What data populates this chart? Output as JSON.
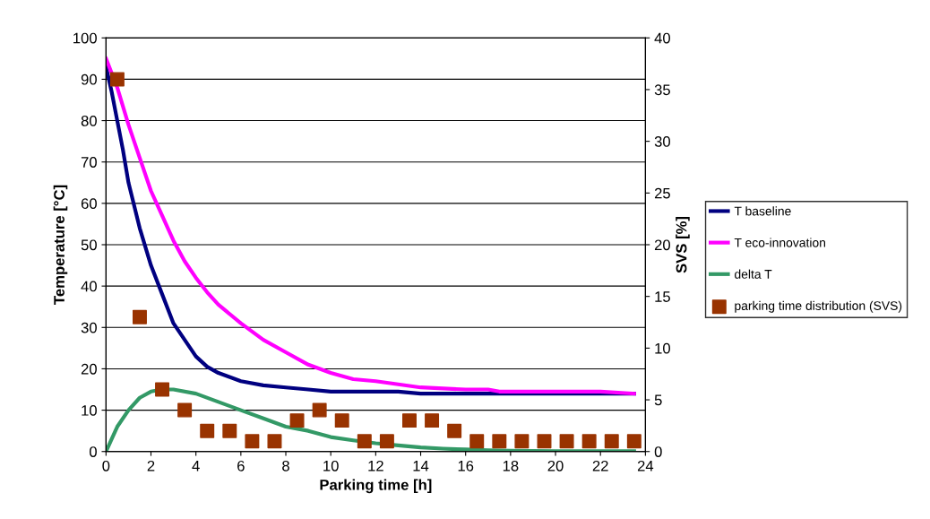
{
  "chart_data": {
    "type": "line",
    "xlabel": "Parking time [h]",
    "ylabel": "Temperature [°C]",
    "y2label": "SVS [%]",
    "xlim": [
      0,
      24
    ],
    "xticks": [
      0,
      2,
      4,
      6,
      8,
      10,
      12,
      14,
      16,
      18,
      20,
      22,
      24
    ],
    "ylim": [
      0,
      100
    ],
    "yticks": [
      0,
      10,
      20,
      30,
      40,
      50,
      60,
      70,
      80,
      90,
      100
    ],
    "y2lim": [
      0,
      40
    ],
    "y2ticks": [
      0,
      5,
      10,
      15,
      20,
      25,
      30,
      35,
      40
    ],
    "grid": "y",
    "legend": "right",
    "series": [
      {
        "name": "T baseline",
        "type": "line",
        "color": "#000080",
        "x": [
          0,
          0.25,
          0.5,
          0.75,
          1,
          1.5,
          2,
          2.5,
          3,
          3.5,
          4,
          4.5,
          5,
          6,
          7,
          8,
          9,
          10,
          12,
          13,
          14,
          16,
          18,
          20,
          22,
          23.5
        ],
        "values": [
          93,
          87,
          80,
          73,
          65,
          54,
          45,
          38,
          31,
          27,
          23,
          20.5,
          19,
          17,
          16,
          15.5,
          15,
          14.5,
          14.5,
          14.5,
          14,
          14,
          14,
          14,
          14,
          14
        ]
      },
      {
        "name": "T eco-innovation",
        "type": "line",
        "color": "#ff00ff",
        "x": [
          0,
          0.5,
          1,
          1.5,
          2,
          2.5,
          3,
          3.5,
          4,
          4.5,
          5,
          6,
          7,
          8,
          9,
          10,
          11,
          12,
          14,
          16,
          17,
          17.5,
          20,
          22,
          23.5
        ],
        "values": [
          95,
          88,
          79,
          71,
          63,
          57,
          51,
          46,
          42,
          38.5,
          35.5,
          31,
          27,
          24,
          21,
          19,
          17.5,
          17,
          15.5,
          15,
          15,
          14.5,
          14.5,
          14.5,
          14
        ]
      },
      {
        "name": "delta T",
        "type": "line",
        "color": "#339966",
        "x": [
          0,
          0.25,
          0.5,
          1,
          1.5,
          2,
          2.5,
          3,
          4,
          5,
          6,
          7,
          8,
          9,
          10,
          11,
          12,
          13,
          14,
          15,
          16,
          17,
          18,
          20,
          22,
          23.5
        ],
        "values": [
          0,
          3,
          6,
          10,
          13,
          14.5,
          15,
          15,
          14,
          12,
          10,
          8,
          6,
          5,
          3.5,
          2.7,
          2,
          1.5,
          1,
          0.7,
          0.5,
          0.3,
          0.2,
          0.1,
          0.1,
          0.1
        ]
      },
      {
        "name": "parking time distribution (SVS)",
        "type": "scatter",
        "axis": "y2",
        "marker": "square",
        "color": "#993300",
        "x": [
          0.5,
          1.5,
          2.5,
          3.5,
          4.5,
          5.5,
          6.5,
          7.5,
          8.5,
          9.5,
          10.5,
          11.5,
          12.5,
          13.5,
          14.5,
          15.5,
          16.5,
          17.5,
          18.5,
          19.5,
          20.5,
          21.5,
          22.5,
          23.5
        ],
        "values": [
          36,
          13,
          6,
          4,
          2,
          2,
          1,
          1,
          3,
          4,
          3,
          1,
          1,
          3,
          3,
          2,
          1,
          1,
          1,
          1,
          1,
          1,
          1,
          1
        ]
      }
    ]
  }
}
